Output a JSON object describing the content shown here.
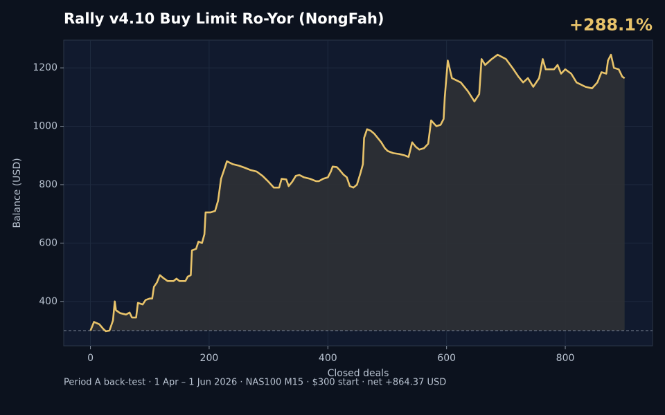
{
  "chart_data": {
    "type": "area-line",
    "title": "Rally v4.10 Buy Limit Ro-Yor (NongFah)",
    "annotation": "+288.1%",
    "footnote": "Period A back-test  ·  1 Apr – 1 Jun 2026  ·  NAS100 M15  ·  $300 start  ·  net +864.37 USD",
    "x_label": "Closed deals",
    "y_label": "Balance (USD)",
    "color": "#e8c36a",
    "fill_color": "#2f3135",
    "reference_line": 300,
    "grid": true,
    "xlim": [
      -45,
      947
    ],
    "ylim": [
      248,
      1295
    ],
    "xticks": [
      0,
      200,
      400,
      600,
      800
    ],
    "yticks": [
      400,
      600,
      800,
      1000,
      1200
    ],
    "x": [
      0,
      6,
      15,
      22,
      26,
      32,
      38,
      41,
      43,
      50,
      60,
      66,
      70,
      77,
      80,
      88,
      93,
      100,
      104,
      107,
      112,
      117,
      123,
      130,
      140,
      145,
      150,
      160,
      164,
      169,
      171,
      178,
      182,
      188,
      192,
      194,
      202,
      210,
      215,
      220,
      225,
      230,
      240,
      250,
      260,
      270,
      280,
      290,
      300,
      309,
      318,
      322,
      330,
      334,
      340,
      346,
      352,
      360,
      370,
      380,
      385,
      392,
      400,
      405,
      408,
      415,
      420,
      426,
      432,
      437,
      443,
      449,
      455,
      459,
      461,
      466,
      472,
      478,
      484,
      490,
      496,
      501,
      510,
      520,
      530,
      536,
      542,
      548,
      554,
      562,
      569,
      574,
      583,
      590,
      595,
      597,
      602,
      609,
      624,
      636,
      647,
      655,
      659,
      665,
      676,
      686,
      700,
      711,
      721,
      729,
      737,
      746,
      756,
      762,
      767,
      781,
      787,
      793,
      800,
      810,
      819,
      834,
      845,
      854,
      861,
      869,
      872,
      877,
      882,
      890,
      896,
      900
    ],
    "values": [
      300,
      330,
      322,
      305,
      298,
      300,
      335,
      400,
      370,
      360,
      355,
      362,
      345,
      345,
      395,
      390,
      405,
      410,
      410,
      450,
      465,
      490,
      480,
      470,
      470,
      478,
      470,
      470,
      485,
      490,
      575,
      580,
      605,
      600,
      630,
      705,
      705,
      710,
      745,
      820,
      850,
      880,
      870,
      865,
      858,
      850,
      845,
      830,
      810,
      790,
      790,
      820,
      818,
      795,
      810,
      830,
      833,
      825,
      820,
      812,
      812,
      820,
      825,
      845,
      862,
      860,
      850,
      835,
      825,
      795,
      790,
      800,
      840,
      870,
      960,
      990,
      985,
      975,
      960,
      945,
      925,
      915,
      908,
      905,
      900,
      895,
      945,
      930,
      920,
      925,
      940,
      1020,
      1000,
      1005,
      1025,
      1100,
      1225,
      1165,
      1150,
      1120,
      1085,
      1110,
      1230,
      1210,
      1230,
      1245,
      1230,
      1200,
      1170,
      1150,
      1165,
      1135,
      1165,
      1230,
      1195,
      1195,
      1210,
      1180,
      1195,
      1180,
      1150,
      1135,
      1130,
      1150,
      1185,
      1180,
      1225,
      1245,
      1200,
      1195,
      1170,
      1164.37
    ]
  }
}
